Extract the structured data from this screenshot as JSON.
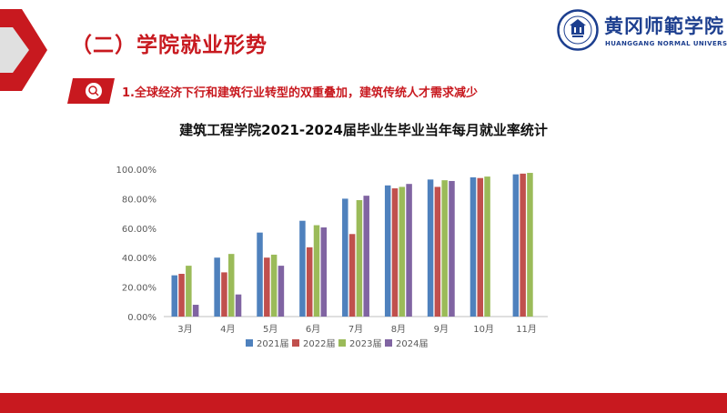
{
  "section_title": "（二）学院就业形势",
  "logo": {
    "name": "黄冈师範学院",
    "english": "HUANGGANG NORMAL UNIVERSITY"
  },
  "subtitle": "1.全球经济下行和建筑行业转型的双重叠加，建筑传统人才需求减少",
  "colors": {
    "accent_red": "#c8191f",
    "brand_blue": "#1d3f8f"
  },
  "chart_data": {
    "type": "bar",
    "title": "建筑工程学院2021-2024届毕业生毕业当年每月就业率统计",
    "xlabel": "",
    "ylabel": "",
    "categories": [
      "3月",
      "4月",
      "5月",
      "6月",
      "7月",
      "8月",
      "9月",
      "10月",
      "11月"
    ],
    "y_tick_labels": [
      "0.00%",
      "20.00%",
      "40.00%",
      "60.00%",
      "80.00%",
      "100.00%"
    ],
    "ylim": [
      0,
      100
    ],
    "grid": false,
    "legend_position": "bottom",
    "series": [
      {
        "name": "2021届",
        "color": "#4f81bd",
        "values": [
          28,
          40,
          57,
          65,
          80,
          89,
          93,
          94.5,
          96.5
        ]
      },
      {
        "name": "2022届",
        "color": "#c0504d",
        "values": [
          29,
          30,
          40,
          47,
          56,
          87,
          88,
          94,
          97
        ]
      },
      {
        "name": "2023届",
        "color": "#9bbb59",
        "values": [
          34.5,
          42.5,
          42,
          62,
          79,
          88,
          92.5,
          95,
          97.5
        ]
      },
      {
        "name": "2024届",
        "color": "#8064a2",
        "values": [
          8,
          15,
          34.5,
          60.5,
          82,
          90,
          92,
          null,
          null
        ]
      }
    ]
  }
}
